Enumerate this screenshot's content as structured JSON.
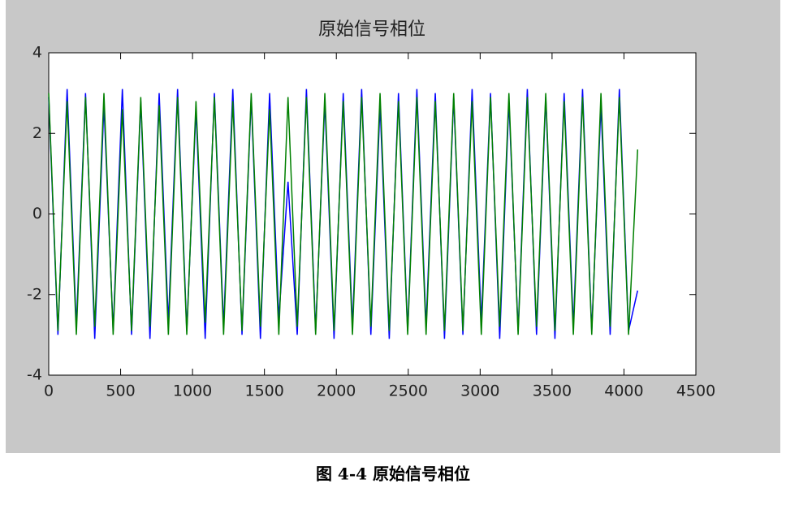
{
  "chart_data": {
    "type": "line",
    "title": "原始信号相位",
    "x": [
      0,
      64,
      128,
      192,
      256,
      320,
      384,
      448,
      512,
      576,
      640,
      704,
      768,
      832,
      896,
      960,
      1024,
      1088,
      1152,
      1216,
      1280,
      1344,
      1408,
      1472,
      1536,
      1600,
      1664,
      1728,
      1792,
      1856,
      1920,
      1984,
      2048,
      2112,
      2176,
      2240,
      2304,
      2368,
      2432,
      2496,
      2560,
      2624,
      2688,
      2752,
      2816,
      2880,
      2944,
      3008,
      3072,
      3136,
      3200,
      3264,
      3328,
      3392,
      3456,
      3520,
      3584,
      3648,
      3712,
      3776,
      3840,
      3904,
      3968,
      4032,
      4095
    ],
    "series": [
      {
        "color": "#0000ff",
        "values": [
          2.9,
          -3.0,
          3.1,
          -2.8,
          3.0,
          -3.1,
          2.7,
          -2.9,
          3.1,
          -3.0,
          2.8,
          -3.1,
          3.0,
          -2.7,
          3.1,
          -2.9,
          2.6,
          -3.1,
          3.0,
          -2.8,
          3.1,
          -3.0,
          2.9,
          -3.1,
          3.0,
          -2.6,
          0.8,
          -3.0,
          3.1,
          -2.9,
          2.8,
          -3.1,
          3.0,
          -2.8,
          3.1,
          -3.0,
          2.7,
          -3.1,
          3.0,
          -2.9,
          3.1,
          -2.8,
          3.0,
          -3.1,
          2.9,
          -3.0,
          3.1,
          -2.7,
          3.0,
          -3.1,
          2.8,
          -2.9,
          3.1,
          -3.0,
          2.9,
          -3.1,
          3.0,
          -2.8,
          3.1,
          -2.9,
          2.7,
          -3.0,
          3.1,
          -2.9,
          -1.9
        ]
      },
      {
        "color": "#008000",
        "values": [
          3.0,
          -2.9,
          2.8,
          -3.0,
          2.9,
          -2.8,
          3.0,
          -3.0,
          2.6,
          -2.9,
          2.9,
          -2.8,
          2.7,
          -3.0,
          2.9,
          -3.0,
          2.8,
          -2.7,
          2.9,
          -3.0,
          2.8,
          -2.9,
          3.0,
          -2.8,
          2.6,
          -3.0,
          2.9,
          -2.8,
          2.9,
          -3.0,
          3.0,
          -2.9,
          2.8,
          -3.0,
          2.9,
          -2.8,
          3.0,
          -2.9,
          2.8,
          -3.0,
          2.9,
          -3.0,
          2.8,
          -2.9,
          3.0,
          -2.9,
          2.8,
          -3.0,
          2.9,
          -2.8,
          3.0,
          -3.0,
          2.9,
          -2.8,
          3.0,
          -2.9,
          2.8,
          -3.0,
          2.9,
          -3.0,
          3.0,
          -2.8,
          2.9,
          -3.0,
          1.6
        ]
      }
    ],
    "xlim": [
      0,
      4500
    ],
    "xticks": [
      0,
      500,
      1000,
      1500,
      2000,
      2500,
      3000,
      3500,
      4000,
      4500
    ],
    "ylim": [
      -4,
      4
    ],
    "yticks": [
      -4,
      -2,
      0,
      2,
      4
    ]
  },
  "caption": "图 4-4  原始信号相位"
}
